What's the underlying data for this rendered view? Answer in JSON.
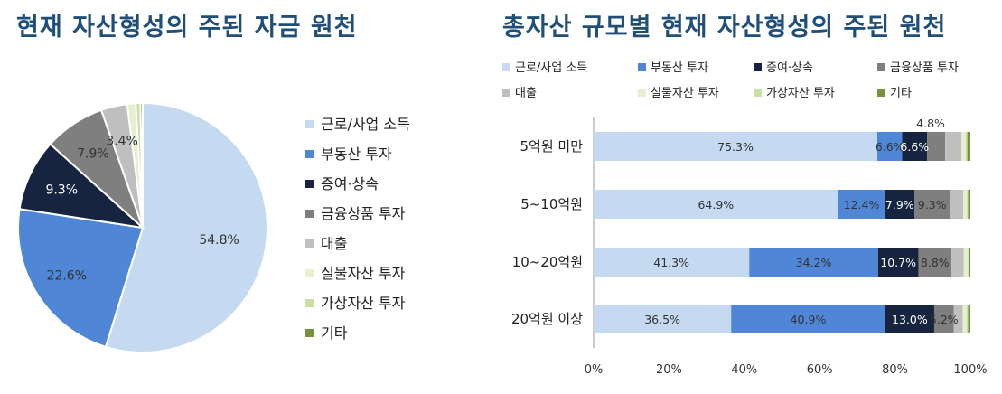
{
  "left": {
    "title": "현재 자산형성의 주된 자금 원천"
  },
  "right": {
    "title": "총자산 규모별 현재 자산형성의 주된 원천"
  },
  "colors": {
    "근로/사업 소득": "#c5d9f1",
    "부동산 투자": "#4f87d6",
    "증여·상속": "#16243f",
    "금융상품 투자": "#7f7f7f",
    "대출": "#bfbfbf",
    "실물자산 투자": "#e6efcf",
    "가상자산 투자": "#c9dfa4",
    "기타": "#76923c"
  },
  "chart_data": [
    {
      "type": "pie",
      "title": "현재 자산형성의 주된 자금 원천",
      "legend_position": "right",
      "labels": [
        "근로/사업 소득",
        "부동산 투자",
        "증여·상속",
        "금융상품 투자",
        "대출",
        "실물자산 투자",
        "가상자산 투자",
        "기타"
      ],
      "values": [
        54.8,
        22.6,
        9.3,
        7.9,
        3.4,
        1.1,
        0.6,
        0.3
      ],
      "data_labels": [
        "54.8%",
        "22.6%",
        "9.3%",
        "7.9%",
        "3.4%",
        "",
        "",
        ""
      ]
    },
    {
      "type": "bar",
      "orientation": "horizontal",
      "stacked": true,
      "title": "총자산 규모별 현재 자산형성의 주된 원천",
      "legend_position": "top",
      "legend_labels": [
        "근로/사업 소득",
        "부동산 투자",
        "증여·상속",
        "금융상품 투자",
        "대출",
        "실물자산 투자",
        "가상자산  투자",
        "기타"
      ],
      "categories": [
        "5억원 미만",
        "5~10억원",
        "10~20억원",
        "20억원 이상"
      ],
      "xlim": [
        0,
        100
      ],
      "x_ticks": [
        "0%",
        "20%",
        "40%",
        "60%",
        "80%",
        "100%"
      ],
      "series": [
        {
          "name": "근로/사업 소득",
          "values": [
            75.3,
            64.9,
            41.3,
            36.5
          ],
          "labels": [
            "75.3%",
            "64.9%",
            "41.3%",
            "36.5%"
          ]
        },
        {
          "name": "부동산 투자",
          "values": [
            6.6,
            12.4,
            34.2,
            40.9
          ],
          "labels": [
            "6.6%",
            "12.4%",
            "34.2%",
            "40.9%"
          ]
        },
        {
          "name": "증여·상속",
          "values": [
            6.6,
            7.9,
            10.7,
            13.0
          ],
          "labels": [
            "6.6%",
            "7.9%",
            "10.7%",
            "13.0%"
          ]
        },
        {
          "name": "금융상품 투자",
          "values": [
            4.8,
            9.3,
            8.8,
            5.2
          ],
          "labels": [
            "4.8%",
            "9.3%",
            "8.8%",
            "5.2%"
          ]
        },
        {
          "name": "대출",
          "values": [
            4.3,
            3.6,
            3.2,
            2.4
          ],
          "labels": [
            "",
            "",
            "",
            ""
          ]
        },
        {
          "name": "실물자산 투자",
          "values": [
            1.2,
            1.0,
            1.2,
            1.0
          ],
          "labels": [
            "",
            "",
            "",
            ""
          ]
        },
        {
          "name": "가상자산 투자",
          "values": [
            0.4,
            0.3,
            0.3,
            0.4
          ],
          "labels": [
            "",
            "",
            "",
            ""
          ]
        },
        {
          "name": "기타",
          "values": [
            0.8,
            0.6,
            0.3,
            0.6
          ],
          "labels": [
            "",
            "",
            "",
            ""
          ]
        }
      ]
    }
  ]
}
